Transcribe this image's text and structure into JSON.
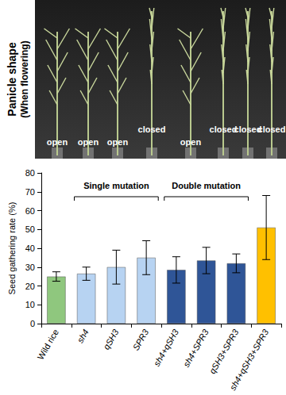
{
  "chart_data": {
    "type": "bar",
    "ylabel": "Seed gathering rate (%)",
    "categories": [
      "Wild rice",
      "sh4",
      "qSH3",
      "SPR3",
      "sh4+qSH3",
      "sh4+SPR3",
      "qSH3+SPR3",
      "sh4+qSH3+SPR3"
    ],
    "values": [
      25,
      26.5,
      30,
      35,
      28.5,
      33.5,
      32,
      51
    ],
    "errors": [
      2.5,
      3.5,
      9,
      9,
      7,
      7,
      5,
      17
    ],
    "colors": [
      "#8fc77e",
      "#b7d3f2",
      "#b7d3f2",
      "#b7d3f2",
      "#2f5597",
      "#2f5597",
      "#2f5597",
      "#ffc000"
    ],
    "ylim": [
      0,
      80
    ],
    "yticks": [
      0,
      10,
      20,
      30,
      40,
      50,
      60,
      70,
      80
    ],
    "grid": false,
    "annotations": [
      {
        "text": "Single mutation",
        "from": "sh4",
        "to": "SPR3"
      },
      {
        "text": "Double mutation",
        "from": "sh4+qSH3",
        "to": "qSH3+SPR3"
      }
    ]
  },
  "photo": {
    "title": [
      "Panicle shape",
      "(When flowering)"
    ],
    "labels": [
      "open",
      "open",
      "open",
      "closed",
      "open",
      "closed",
      "closed",
      "closed"
    ]
  }
}
